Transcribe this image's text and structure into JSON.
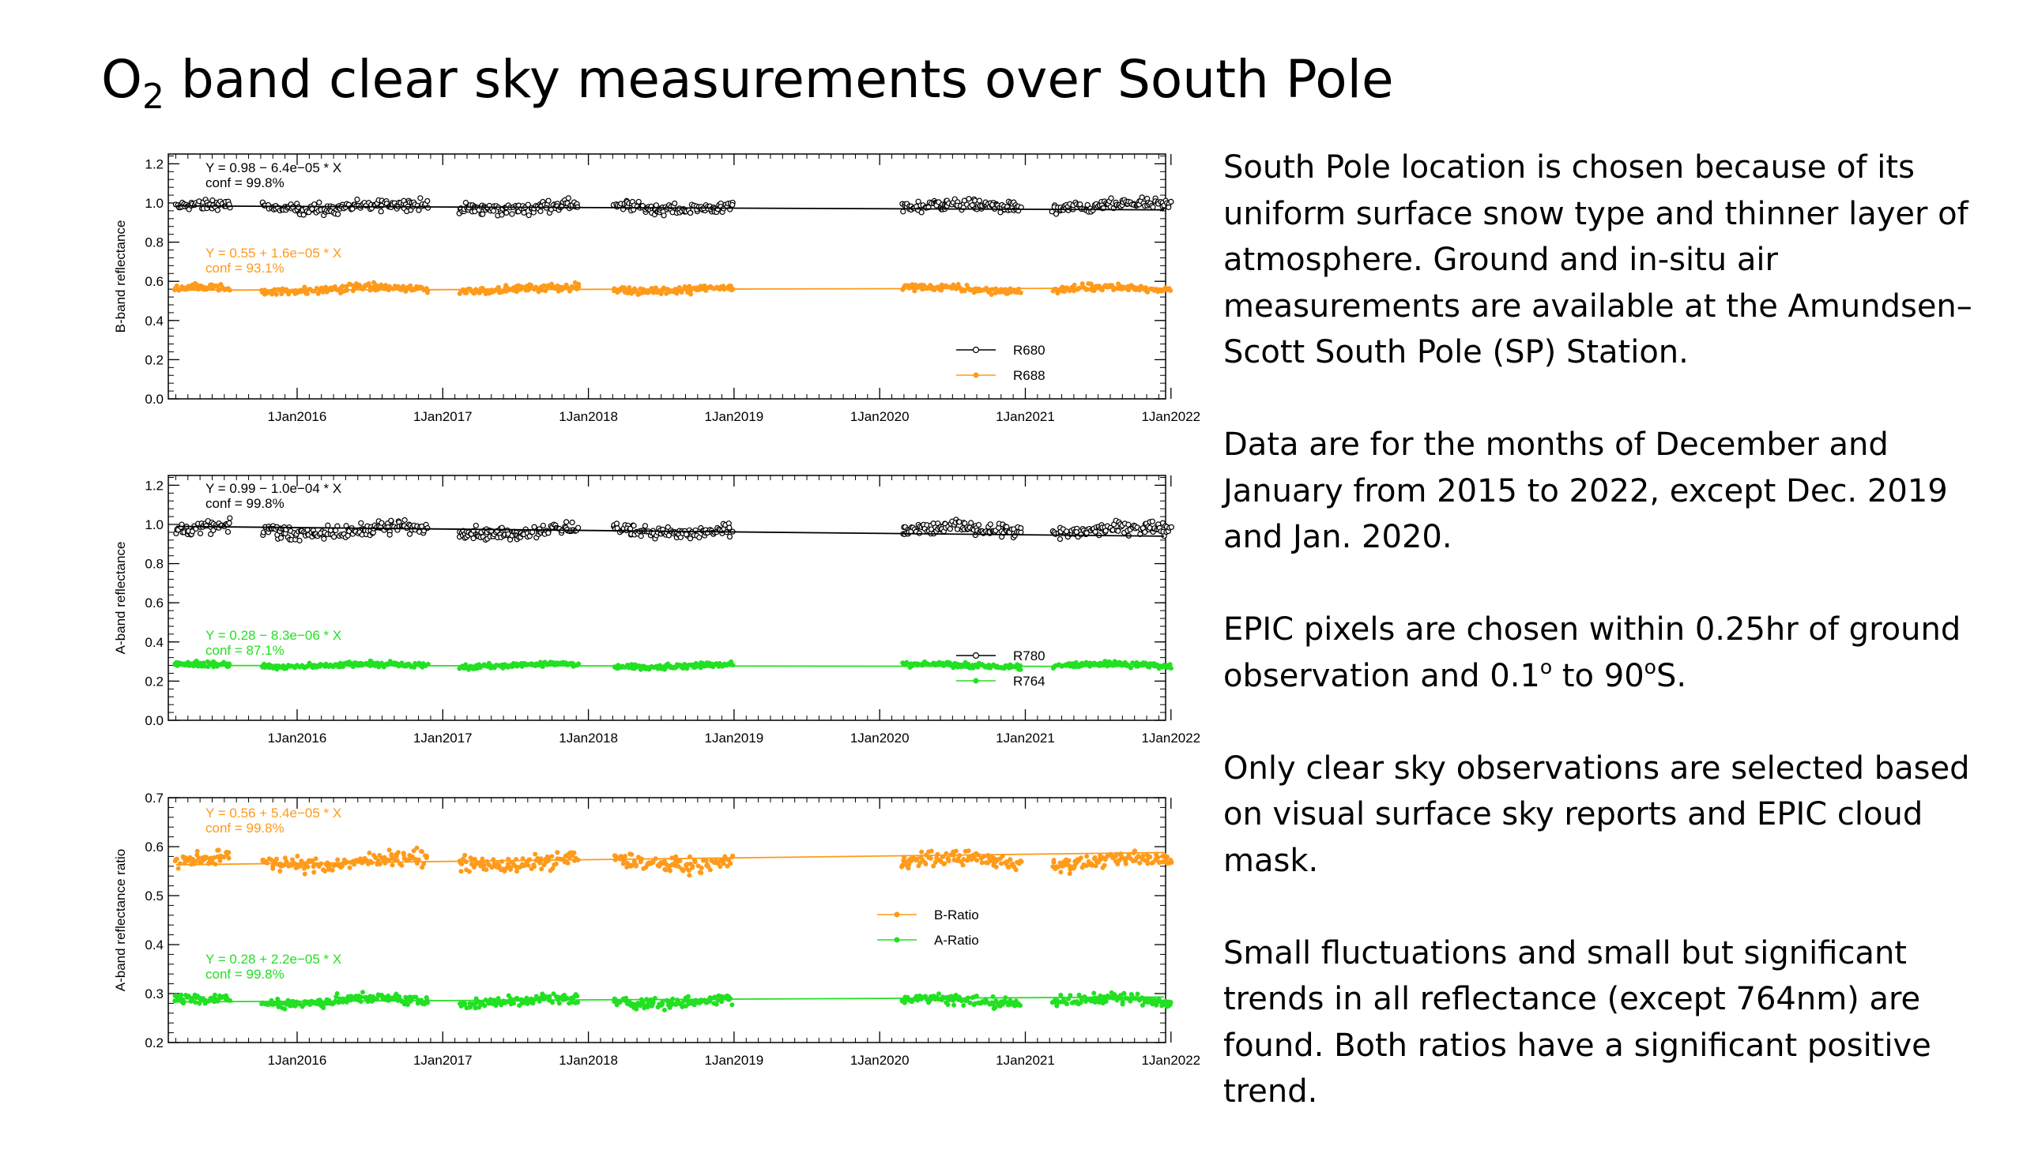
{
  "slide": {
    "title_main": "O",
    "title_sub": "2",
    "title_rest": " band clear sky measurements over South Pole",
    "paragraphs": [
      {
        "parts": [
          {
            "t": "South Pole location is chosen because of its uniform surface snow type and thinner layer of atmosphere. Ground and in-situ air measurements are available at the Amundsen–Scott South Pole (SP) Station."
          }
        ]
      },
      {
        "parts": [
          {
            "t": "Data are for the months of December and January from 2015 to 2022, except Dec. 2019 and Jan. 2020."
          }
        ]
      },
      {
        "parts": [
          {
            "t": "EPIC pixels are chosen within 0.25hr of ground observation and 0.1"
          },
          {
            "sup": "o"
          },
          {
            "t": " to 90"
          },
          {
            "sup": "o"
          },
          {
            "t": "S."
          }
        ]
      },
      {
        "parts": [
          {
            "t": "Only clear sky observations are selected based on visual surface sky reports and EPIC cloud mask."
          }
        ]
      },
      {
        "parts": [
          {
            "t": "Small fluctuations and small but significant trends in all reflectance (except 764nm) are found. Both ratios have a significant positive trend."
          }
        ]
      }
    ]
  },
  "colors": {
    "black": "#000000",
    "orange": "#ff9a1a",
    "green": "#22e022"
  },
  "chart_data": [
    {
      "type": "scatter",
      "ylabel": "B-band reflectance",
      "ylim": [
        0.0,
        1.25
      ],
      "yticks": [
        0.0,
        0.2,
        0.4,
        0.6,
        0.8,
        1.0,
        1.2
      ],
      "ytick_labels": [
        "0.0",
        "0.2",
        "0.4",
        "0.6",
        "0.8",
        "1.0",
        "1.2"
      ],
      "xticks": [
        "1Jan2016",
        "1Jan2017",
        "1Jan2018",
        "1Jan2019",
        "1Jan2020",
        "1Jan2021",
        "1Jan2022"
      ],
      "legend_position": "bottom-right",
      "series": [
        {
          "name": "R680",
          "color": "#000000",
          "marker": "open-circle",
          "mean": 0.98,
          "spread": 0.03,
          "fit_start": 0.985,
          "fit_end": 0.965,
          "annotation": [
            "Y = 0.98 − 6.4e−05 * X",
            "conf = 99.8%"
          ]
        },
        {
          "name": "R688",
          "color": "#ff9a1a",
          "marker": "filled-circle",
          "mean": 0.56,
          "spread": 0.02,
          "fit_start": 0.555,
          "fit_end": 0.565,
          "annotation": [
            "Y = 0.55 + 1.6e−05 * X",
            "conf = 93.1%"
          ]
        }
      ]
    },
    {
      "type": "scatter",
      "ylabel": "A-band reflectance",
      "ylim": [
        0.0,
        1.25
      ],
      "yticks": [
        0.0,
        0.2,
        0.4,
        0.6,
        0.8,
        1.0,
        1.2
      ],
      "ytick_labels": [
        "0.0",
        "0.2",
        "0.4",
        "0.6",
        "0.8",
        "1.0",
        "1.2"
      ],
      "xticks": [
        "1Jan2016",
        "1Jan2017",
        "1Jan2018",
        "1Jan2019",
        "1Jan2020",
        "1Jan2021",
        "1Jan2022"
      ],
      "legend_position": "right",
      "series": [
        {
          "name": "R780",
          "color": "#000000",
          "marker": "open-circle",
          "mean": 0.97,
          "spread": 0.035,
          "fit_start": 0.99,
          "fit_end": 0.94,
          "annotation": [
            "Y = 0.99 − 1.0e−04 * X",
            "conf = 99.8%"
          ]
        },
        {
          "name": "R764",
          "color": "#22e022",
          "marker": "filled-circle",
          "mean": 0.28,
          "spread": 0.015,
          "fit_start": 0.28,
          "fit_end": 0.275,
          "annotation": [
            "Y = 0.28 − 8.3e−06 * X",
            "conf = 87.1%"
          ]
        }
      ]
    },
    {
      "type": "scatter",
      "ylabel": "A-band reflectance ratio",
      "ylim": [
        0.2,
        0.7
      ],
      "yticks": [
        0.2,
        0.3,
        0.4,
        0.5,
        0.6,
        0.7
      ],
      "ytick_labels": [
        "0.2",
        "0.3",
        "0.4",
        "0.5",
        "0.6",
        "0.7"
      ],
      "xticks": [
        "1Jan2016",
        "1Jan2017",
        "1Jan2018",
        "1Jan2019",
        "1Jan2020",
        "1Jan2021",
        "1Jan2022"
      ],
      "legend_position": "center-right",
      "series": [
        {
          "name": "B-Ratio",
          "color": "#ff9a1a",
          "marker": "filled-circle",
          "mean": 0.57,
          "spread": 0.016,
          "fit_start": 0.563,
          "fit_end": 0.588,
          "annotation": [
            "Y = 0.56 + 5.4e−05 * X",
            "conf = 99.8%"
          ]
        },
        {
          "name": "A-Ratio",
          "color": "#22e022",
          "marker": "filled-circle",
          "mean": 0.285,
          "spread": 0.011,
          "fit_start": 0.283,
          "fit_end": 0.293,
          "annotation": [
            "Y = 0.28 + 2.2e−05 * X",
            "conf = 99.8%"
          ]
        }
      ]
    }
  ]
}
